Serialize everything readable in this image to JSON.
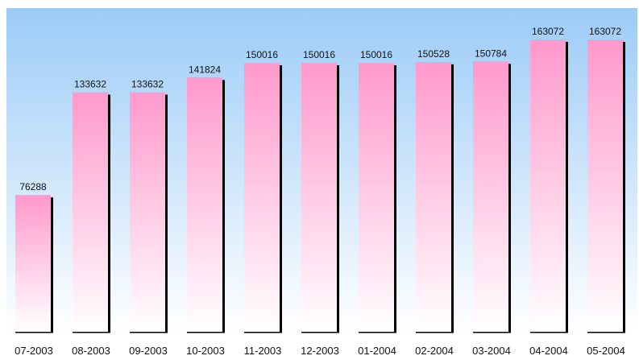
{
  "chart_data": {
    "type": "bar",
    "title": "",
    "xlabel": "",
    "ylabel": "",
    "categories": [
      "07-2003",
      "08-2003",
      "09-2003",
      "10-2003",
      "11-2003",
      "12-2003",
      "01-2004",
      "02-2004",
      "03-2004",
      "04-2004",
      "05-2004"
    ],
    "values": [
      76288,
      133632,
      133632,
      141824,
      150016,
      150016,
      150016,
      150528,
      150784,
      163072,
      163072
    ],
    "value_labels": [
      "76288",
      "133632",
      "133632",
      "141824",
      "150016",
      "150016",
      "150016",
      "150528",
      "150784",
      "163072",
      "163072"
    ],
    "ylim": [
      0,
      163072
    ],
    "grid": false,
    "legend": "none",
    "colors": {
      "background_top": "#9ccbf7",
      "background_bottom": "#ffffff",
      "bar_top": "#ff99cc",
      "bar_bottom": "#ffffff",
      "bar_shadow": "#000000"
    }
  }
}
